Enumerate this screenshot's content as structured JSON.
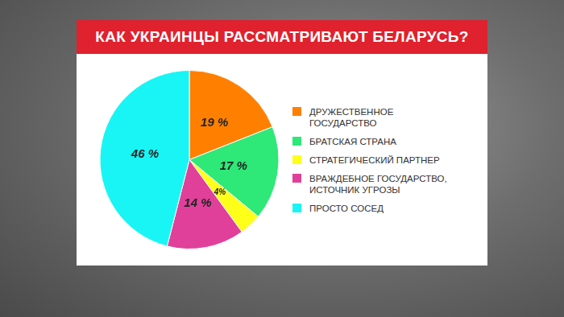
{
  "chart_data": {
    "type": "pie",
    "title": "КАК УКРАИНЦЫ РАССМАТРИВАЮТ БЕЛАРУСЬ?",
    "categories": [
      "ДРУЖЕСТВЕННОЕ ГОСУДАРСТВО",
      "БРАТСКАЯ СТРАНА",
      "СТРАТЕГИЧЕСКИЙ ПАРТНЕР",
      "ВРАЖДЕБНОЕ ГОСУДАРСТВО, ИСТОЧНИК УГРОЗЫ",
      "ПРОСТО СОСЕД"
    ],
    "values": [
      19,
      17,
      4,
      14,
      46
    ],
    "value_labels": [
      "19 %",
      "17 %",
      "4%",
      "14 %",
      "46 %"
    ],
    "colors": [
      "#ff8000",
      "#2ee878",
      "#ffff1a",
      "#e0409a",
      "#19f5f5"
    ],
    "legend": "right",
    "data_labels": true
  }
}
